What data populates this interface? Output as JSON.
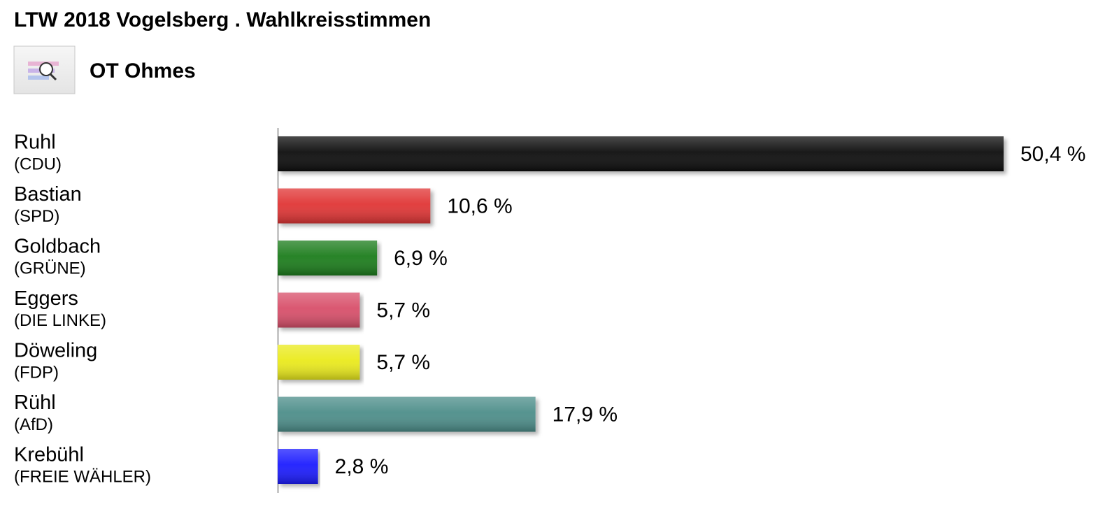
{
  "chart_data": {
    "type": "bar",
    "orientation": "horizontal",
    "title": "LTW 2018 Vogelsberg . Wahlkreisstimmen",
    "subtitle": "OT Ohmes",
    "categories": [
      "Ruhl",
      "Bastian",
      "Goldbach",
      "Eggers",
      "Döweling",
      "Rühl",
      "Krebühl"
    ],
    "parties": [
      "(CDU)",
      "(SPD)",
      "(GRÜNE)",
      "(DIE LINKE)",
      "(FDP)",
      "(AfD)",
      "(FREIE WÄHLER)"
    ],
    "values": [
      50.4,
      10.6,
      6.9,
      5.7,
      5.7,
      17.9,
      2.8
    ],
    "value_labels": [
      "50,4 %",
      "10,6 %",
      "6,9 %",
      "5,7 %",
      "5,7 %",
      "17,9 %",
      "2,8 %"
    ],
    "colors": [
      "#111111",
      "#e03434",
      "#1b7d1b",
      "#d8506a",
      "#eaea1e",
      "#4d8e8a",
      "#1a1aff"
    ]
  }
}
